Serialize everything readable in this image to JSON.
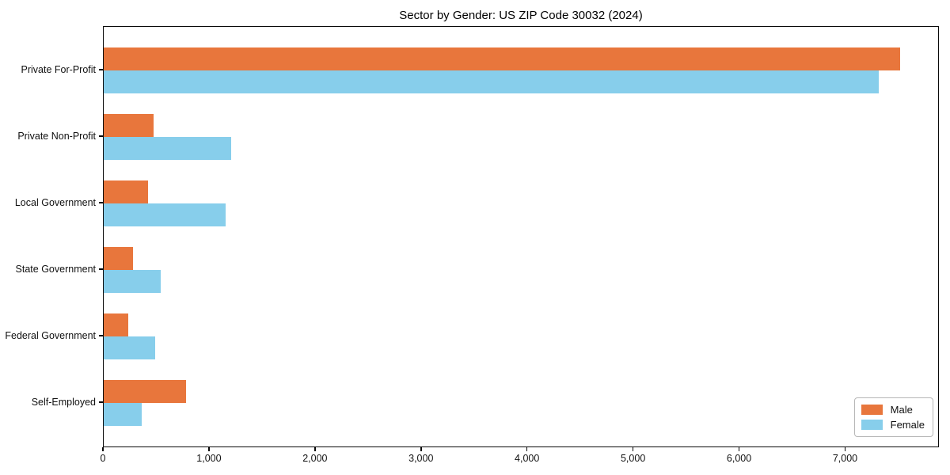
{
  "chart_data": {
    "type": "bar",
    "orientation": "horizontal",
    "title": "Sector by Gender: US ZIP Code 30032 (2024)",
    "categories": [
      "Private For-Profit",
      "Private Non-Profit",
      "Local Government",
      "State Government",
      "Federal Government",
      "Self-Employed"
    ],
    "series": [
      {
        "name": "Male",
        "color": "#E8763C",
        "values": [
          7510,
          470,
          420,
          280,
          230,
          775
        ]
      },
      {
        "name": "Female",
        "color": "#87CEEB",
        "values": [
          7310,
          1200,
          1150,
          540,
          485,
          355
        ]
      }
    ],
    "xlabel": "",
    "ylabel": "",
    "xlim": [
      0,
      7885
    ],
    "x_ticks": [
      0,
      1000,
      2000,
      3000,
      4000,
      5000,
      6000,
      7000
    ],
    "x_tick_labels": [
      "0",
      "1,000",
      "2,000",
      "3,000",
      "4,000",
      "5,000",
      "6,000",
      "7,000"
    ],
    "grid": false,
    "legend_position": "lower right"
  }
}
